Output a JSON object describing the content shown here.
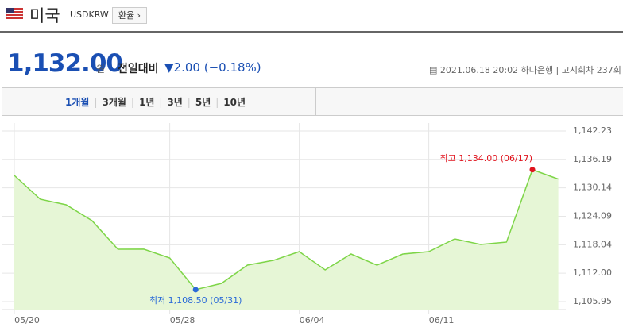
{
  "header": {
    "name": "미국",
    "code": "USDKRW",
    "button": "환율",
    "price": "1,132.00",
    "price_unit": "원",
    "change_label": "전일대비",
    "change": "2.00 (−0.18%)",
    "timestamp": "2021.06.18 20:02",
    "bank": "하나은행",
    "round": "고시회차 237회"
  },
  "tabs": [
    "1개월",
    "3개월",
    "1년",
    "3년",
    "5년",
    "10년"
  ],
  "chart_data": {
    "type": "area",
    "categories": [
      "05/20",
      null,
      null,
      null,
      null,
      null,
      "05/28",
      null,
      null,
      null,
      null,
      "06/04",
      null,
      null,
      null,
      null,
      "06/11",
      null,
      null,
      null,
      null,
      null
    ],
    "values": [
      1132.78,
      1127.72,
      1126.54,
      1123.16,
      1117.09,
      1117.1,
      1115.23,
      1108.5,
      1109.83,
      1113.71,
      1114.72,
      1116.58,
      1112.7,
      1116.07,
      1113.71,
      1116.07,
      1116.58,
      1119.28,
      1118.1,
      1118.61,
      1134.0,
      1132.0
    ],
    "color": "#7ed548",
    "fill": "#e6f6d6",
    "ylim": [
      1105.95,
      1142.23
    ],
    "yticks": [
      {
        "value": 1105.95,
        "label": "1,105.95"
      },
      {
        "value": 1112.0,
        "label": "1,112.00"
      },
      {
        "value": 1118.04,
        "label": "1,118.04"
      },
      {
        "value": 1124.09,
        "label": "1,124.09"
      },
      {
        "value": 1130.14,
        "label": "1,130.14"
      },
      {
        "value": 1136.19,
        "label": "1,136.19"
      },
      {
        "value": 1142.23,
        "label": "1,142.23"
      }
    ],
    "grid": true,
    "annotations": {
      "high": {
        "text": "최고 1,134.00 (06/17)",
        "color": "#e0141e"
      },
      "low": {
        "text": "최저 1,108.50 (05/31)",
        "color": "#2a6ad8"
      }
    }
  }
}
